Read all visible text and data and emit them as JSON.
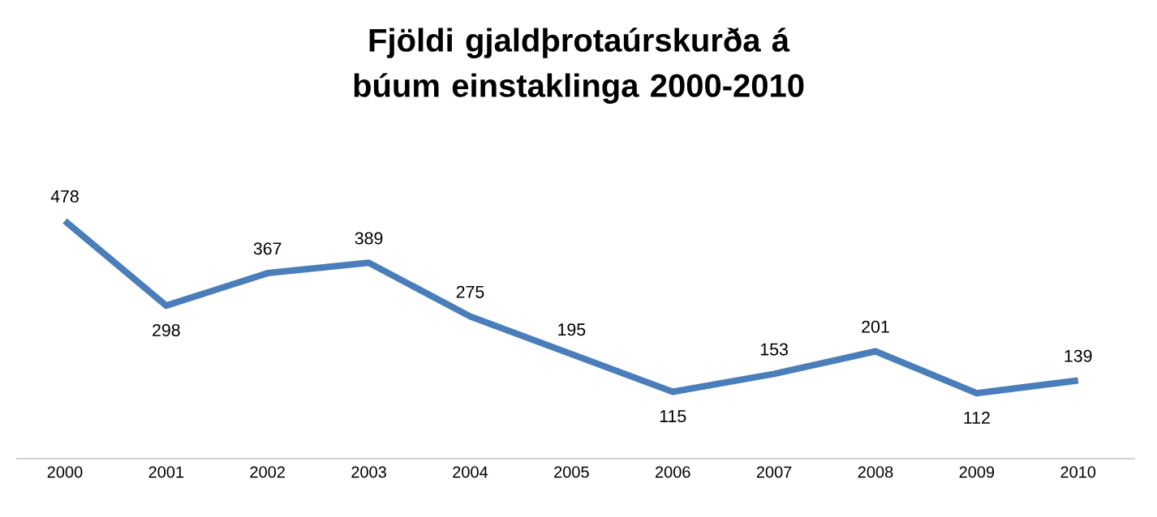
{
  "chart_data": {
    "type": "line",
    "title": "Fjöldi gjaldþrotaúrskurða á búum einstaklinga 2000-2010",
    "categories": [
      "2000",
      "2001",
      "2002",
      "2003",
      "2004",
      "2005",
      "2006",
      "2007",
      "2008",
      "2009",
      "2010"
    ],
    "values": [
      478,
      298,
      367,
      389,
      275,
      195,
      115,
      153,
      201,
      112,
      139
    ],
    "color": "#4a7ebb",
    "data_labels": true,
    "grid": false,
    "marker": "none",
    "line_style": "solid",
    "tick_labels": "x"
  }
}
